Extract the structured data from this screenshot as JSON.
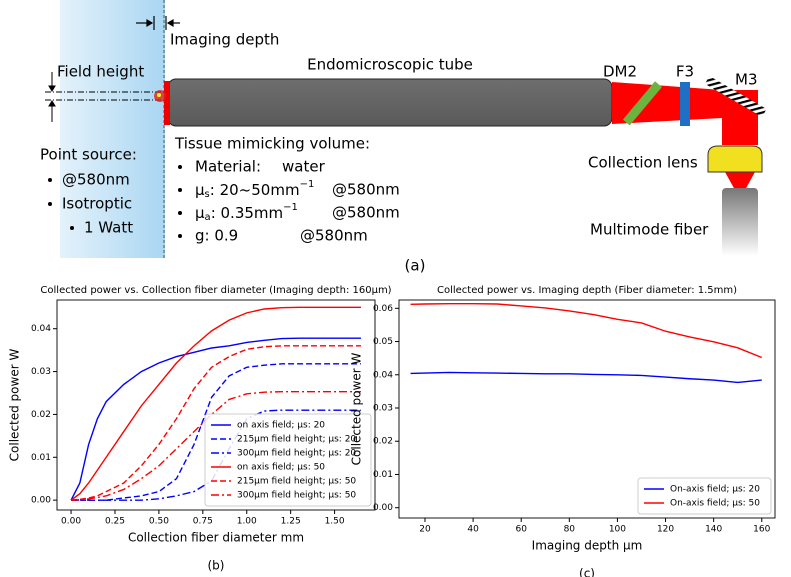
{
  "diagram": {
    "imaging_depth": "Imaging depth",
    "field_height": "Field height",
    "tube": "Endomicroscopic tube",
    "dm2": "DM2",
    "f3": "F3",
    "m3": "M3",
    "point_source": {
      "title": "Point source:",
      "items": [
        "@580nm",
        "Isotroptic",
        "1 Watt"
      ]
    },
    "tissue": {
      "title": "Tissue mimicking volume:",
      "material": {
        "label": "Material:",
        "value": "water"
      },
      "mu_s": {
        "symbol": "μ",
        "sub": "s",
        "text": ": 20~50mm",
        "sup": "−1",
        "note": "@580nm"
      },
      "mu_a": {
        "symbol": "μ",
        "sub": "a",
        "text": ": 0.35mm",
        "sup": "−1",
        "note": "@580nm"
      },
      "g": {
        "label": "g: 0.9",
        "note": "@580nm"
      }
    },
    "collection_lens": "Collection lens",
    "fiber": "Multimode fiber",
    "panel": "(a)"
  },
  "chart_data": [
    {
      "type": "line",
      "title": "Collected power vs. Collection fiber diameter (Imaging depth: 160μm)",
      "x_label": "Collection fiber diameter mm",
      "y_label": "Collected power W",
      "panel": "(b)",
      "xlim": [
        -0.08,
        1.73
      ],
      "ylim": [
        -0.0023,
        0.0467
      ],
      "xticks": [
        {
          "value": 0,
          "label": "0.00"
        },
        {
          "value": 0.25,
          "label": "0.25"
        },
        {
          "value": 0.5,
          "label": "0.50"
        },
        {
          "value": 0.75,
          "label": "0.75"
        },
        {
          "value": 1,
          "label": "1.00"
        },
        {
          "value": 1.25,
          "label": "1.25"
        },
        {
          "value": 1.5,
          "label": "1.50"
        }
      ],
      "yticks": [
        {
          "value": 0,
          "label": "0.00"
        },
        {
          "value": 0.01,
          "label": "0.01"
        },
        {
          "value": 0.02,
          "label": "0.02"
        },
        {
          "value": 0.03,
          "label": "0.03"
        },
        {
          "value": 0.04,
          "label": "0.04"
        }
      ],
      "legend": "lower right",
      "x": [
        0,
        0.05,
        0.1,
        0.15,
        0.2,
        0.3,
        0.4,
        0.5,
        0.6,
        0.7,
        0.8,
        0.9,
        1.0,
        1.1,
        1.2,
        1.3,
        1.4,
        1.5,
        1.65
      ],
      "series": [
        {
          "name": "on axis field; μs: 20",
          "color": "#0000ff",
          "dash": "solid",
          "values": [
            0,
            0.004,
            0.013,
            0.019,
            0.023,
            0.027,
            0.03,
            0.032,
            0.0335,
            0.0345,
            0.0355,
            0.036,
            0.0368,
            0.0373,
            0.0377,
            0.0378,
            0.0378,
            0.0378,
            0.0378
          ]
        },
        {
          "name": "215μm field height; μs: 20",
          "color": "#0000ff",
          "dash": "dashed",
          "values": [
            0,
            0,
            0,
            0,
            0,
            0.0005,
            0.001,
            0.002,
            0.005,
            0.013,
            0.024,
            0.029,
            0.031,
            0.0315,
            0.0318,
            0.0318,
            0.0318,
            0.0318,
            0.0318
          ]
        },
        {
          "name": "300μm field height; μs: 20",
          "color": "#0000ff",
          "dash": "dashdot",
          "values": [
            0,
            0,
            0,
            0,
            0,
            0,
            0,
            0.0003,
            0.001,
            0.002,
            0.0045,
            0.012,
            0.019,
            0.0208,
            0.021,
            0.021,
            0.021,
            0.021,
            0.021
          ]
        },
        {
          "name": "on axis field; μs: 50",
          "color": "#ff0000",
          "dash": "solid",
          "values": [
            0,
            0.0015,
            0.004,
            0.007,
            0.01,
            0.016,
            0.022,
            0.027,
            0.032,
            0.036,
            0.0395,
            0.042,
            0.0437,
            0.0446,
            0.0449,
            0.045,
            0.045,
            0.045,
            0.045
          ]
        },
        {
          "name": "215μm field height; μs: 50",
          "color": "#ff0000",
          "dash": "dashed",
          "values": [
            0,
            0.0002,
            0.0005,
            0.001,
            0.002,
            0.004,
            0.008,
            0.013,
            0.019,
            0.026,
            0.031,
            0.0335,
            0.0352,
            0.0358,
            0.036,
            0.036,
            0.036,
            0.036,
            0.036
          ]
        },
        {
          "name": "300μm field height; μs: 50",
          "color": "#ff0000",
          "dash": "dashdot",
          "values": [
            0,
            0.0001,
            0.0003,
            0.0006,
            0.001,
            0.0025,
            0.005,
            0.008,
            0.012,
            0.016,
            0.02,
            0.0235,
            0.0248,
            0.0252,
            0.0253,
            0.0253,
            0.0253,
            0.0253,
            0.0253
          ]
        }
      ]
    },
    {
      "type": "line",
      "title": "Collected power vs. Imaging depth (Fiber diameter: 1.5mm)",
      "x_label": "Imaging depth μm",
      "y_label": "Collected power W",
      "panel": "(c)",
      "xlim": [
        9.2,
        165.5
      ],
      "ylim": [
        -0.0031,
        0.0625
      ],
      "xticks": [
        20,
        40,
        60,
        80,
        100,
        120,
        140,
        160
      ],
      "yticks": [
        {
          "value": 0,
          "label": "0.00"
        },
        {
          "value": 0.01,
          "label": "0.01"
        },
        {
          "value": 0.02,
          "label": "0.02"
        },
        {
          "value": 0.03,
          "label": "0.03"
        },
        {
          "value": 0.04,
          "label": "0.04"
        },
        {
          "value": 0.05,
          "label": "0.05"
        },
        {
          "value": 0.06,
          "label": "0.06"
        }
      ],
      "legend": "lower right",
      "x": [
        14,
        20,
        30,
        40,
        50,
        60,
        70,
        80,
        90,
        100,
        110,
        120,
        130,
        140,
        150,
        160
      ],
      "series": [
        {
          "name": "On-axis field; μs: 20",
          "color": "#0000ff",
          "dash": "solid",
          "values": [
            0.0404,
            0.0405,
            0.0407,
            0.0406,
            0.0405,
            0.0404,
            0.0403,
            0.0403,
            0.0401,
            0.04,
            0.0398,
            0.0393,
            0.0388,
            0.0384,
            0.0377,
            0.0384
          ]
        },
        {
          "name": "On-axis field; μs: 50",
          "color": "#ff0000",
          "dash": "solid",
          "values": [
            0.0612,
            0.0613,
            0.0614,
            0.0614,
            0.0613,
            0.0607,
            0.0601,
            0.0592,
            0.0581,
            0.0567,
            0.0556,
            0.0531,
            0.0514,
            0.0499,
            0.0481,
            0.0452
          ]
        }
      ]
    }
  ]
}
